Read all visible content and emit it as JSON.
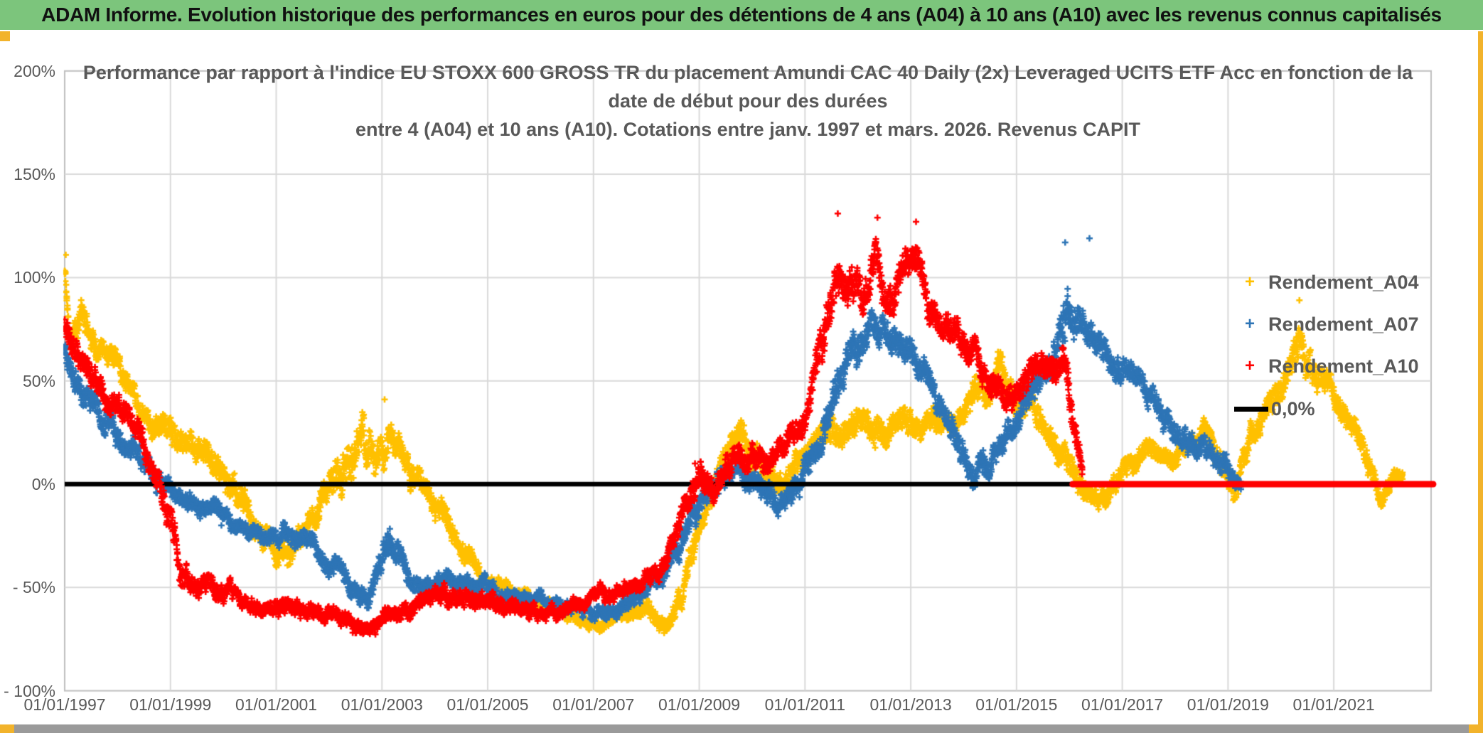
{
  "banner": {
    "title": "ADAM Informe. Evolution historique des performances en euros pour des détentions de 4 ans (A04) à 10 ans (A10) avec les revenus connus capitalisés",
    "bg_color": "#7CC57C",
    "accent_color": "#F2B32B"
  },
  "chart_data": {
    "type": "scatter",
    "title_lines": [
      "Performance par rapport à l'indice EU STOXX 600 GROSS TR  du placement Amundi CAC 40 Daily (2x) Leveraged UCITS ETF Acc en fonction de la",
      "date de début pour des durées",
      "entre 4 (A04) et 10 ans (A10). Cotations entre janv. 1997 et mars. 2026. Revenus CAPIT"
    ],
    "grid": true,
    "legend_position": "top-right",
    "x_range_years": [
      1997.0,
      2022.84
    ],
    "y_range_pct": [
      -100,
      200
    ],
    "y_ticks": {
      "labels": [
        "200%",
        "150%",
        "100%",
        "50%",
        "0%",
        "- 50%",
        "- 100%"
      ],
      "values": [
        200,
        150,
        100,
        50,
        0,
        -50,
        -100
      ]
    },
    "x_ticks": {
      "labels": [
        "01/01/1997",
        "01/01/1999",
        "01/01/2001",
        "01/01/2003",
        "01/01/2005",
        "01/01/2007",
        "01/01/2009",
        "01/01/2011",
        "01/01/2013",
        "01/01/2015",
        "01/01/2017",
        "01/01/2019",
        "01/01/2021"
      ],
      "years": [
        1997,
        1999,
        2001,
        2003,
        2005,
        2007,
        2009,
        2011,
        2013,
        2015,
        2017,
        2019,
        2021
      ]
    },
    "grid_color": "#D9D9D9",
    "border_color": "#BFBFBF",
    "text_color": "#595959",
    "zero_line": {
      "label": "0,0%",
      "value": 0,
      "color": "#000000",
      "from_year": 1997.0,
      "to_year": 2016.06
    },
    "series": [
      {
        "name": "Rendement_A04",
        "color": "#FFC000",
        "marker": "plus",
        "seed": 11,
        "anchors": [
          [
            1997.0,
            105,
            6
          ],
          [
            1997.1,
            72,
            10
          ],
          [
            1997.3,
            90,
            12
          ],
          [
            1997.5,
            70,
            8
          ],
          [
            1997.8,
            60,
            8
          ],
          [
            1998.0,
            56,
            8
          ],
          [
            1998.3,
            42,
            8
          ],
          [
            1998.6,
            32,
            8
          ],
          [
            1999.0,
            22,
            10
          ],
          [
            1999.3,
            12,
            10
          ],
          [
            1999.6,
            18,
            10
          ],
          [
            2000.0,
            2,
            10
          ],
          [
            2000.5,
            -14,
            9
          ],
          [
            2001.0,
            -33,
            8
          ],
          [
            2001.3,
            -28,
            9
          ],
          [
            2001.7,
            -17,
            8
          ],
          [
            2002.0,
            -5,
            10
          ],
          [
            2002.3,
            8,
            16
          ],
          [
            2002.6,
            22,
            16
          ],
          [
            2002.9,
            10,
            12
          ],
          [
            2003.15,
            27,
            11
          ],
          [
            2003.45,
            8,
            10
          ],
          [
            2003.8,
            -4,
            8
          ],
          [
            2004.1,
            -12,
            8
          ],
          [
            2004.5,
            -28,
            8
          ],
          [
            2004.9,
            -45,
            6
          ],
          [
            2005.4,
            -52,
            5
          ],
          [
            2005.9,
            -56,
            5
          ],
          [
            2006.3,
            -62,
            5
          ],
          [
            2006.7,
            -66,
            4
          ],
          [
            2007.2,
            -67,
            4
          ],
          [
            2007.7,
            -62,
            5
          ],
          [
            2008.0,
            -60,
            6
          ],
          [
            2008.35,
            -71,
            6
          ],
          [
            2008.7,
            -50,
            8
          ],
          [
            2009.0,
            -25,
            10
          ],
          [
            2009.2,
            -8,
            10
          ],
          [
            2009.5,
            10,
            12
          ],
          [
            2009.8,
            22,
            10
          ],
          [
            2010.1,
            12,
            10
          ],
          [
            2010.45,
            -2,
            10
          ],
          [
            2010.8,
            8,
            9
          ],
          [
            2011.2,
            18,
            9
          ],
          [
            2011.55,
            33,
            9
          ],
          [
            2011.9,
            26,
            10
          ],
          [
            2012.3,
            26,
            11
          ],
          [
            2012.7,
            30,
            9
          ],
          [
            2013.1,
            34,
            8
          ],
          [
            2013.5,
            31,
            8
          ],
          [
            2013.9,
            32,
            9
          ],
          [
            2014.3,
            42,
            9
          ],
          [
            2014.65,
            52,
            9
          ],
          [
            2015.0,
            44,
            9
          ],
          [
            2015.45,
            33,
            9
          ],
          [
            2015.8,
            18,
            9
          ],
          [
            2016.1,
            2,
            9
          ],
          [
            2016.45,
            -10,
            7
          ],
          [
            2016.8,
            -4,
            7
          ],
          [
            2017.1,
            10,
            7
          ],
          [
            2017.5,
            17,
            7
          ],
          [
            2017.9,
            14,
            7
          ],
          [
            2018.3,
            21,
            7
          ],
          [
            2018.6,
            28,
            7
          ],
          [
            2018.95,
            5,
            9
          ],
          [
            2019.15,
            -6,
            7
          ],
          [
            2019.45,
            22,
            9
          ],
          [
            2019.7,
            40,
            9
          ],
          [
            2020.0,
            42,
            9
          ],
          [
            2020.35,
            70,
            12
          ],
          [
            2020.6,
            52,
            9
          ],
          [
            2020.9,
            45,
            9
          ],
          [
            2021.15,
            38,
            8
          ],
          [
            2021.4,
            24,
            8
          ],
          [
            2021.7,
            2,
            8
          ],
          [
            2021.9,
            -8,
            6
          ],
          [
            2022.1,
            3,
            5
          ],
          [
            2022.3,
            2,
            4
          ]
        ],
        "outliers": [
          [
            1997.02,
            111
          ],
          [
            2020.35,
            89
          ],
          [
            2014.65,
            64
          ],
          [
            2003.05,
            41
          ]
        ]
      },
      {
        "name": "Rendement_A07",
        "color": "#2E75B6",
        "marker": "plus",
        "seed": 23,
        "anchors": [
          [
            1997.0,
            66,
            8
          ],
          [
            1997.3,
            49,
            9
          ],
          [
            1997.6,
            36,
            9
          ],
          [
            1997.9,
            29,
            8
          ],
          [
            1998.2,
            20,
            9
          ],
          [
            1998.5,
            11,
            8
          ],
          [
            1998.8,
            2,
            8
          ],
          [
            1999.1,
            -6,
            6
          ],
          [
            1999.5,
            -11,
            6
          ],
          [
            1999.9,
            -14,
            6
          ],
          [
            2000.2,
            -22,
            6
          ],
          [
            2000.6,
            -22,
            6
          ],
          [
            2001.0,
            -25,
            6
          ],
          [
            2001.4,
            -27,
            7
          ],
          [
            2001.8,
            -33,
            6
          ],
          [
            2002.1,
            -41,
            7
          ],
          [
            2002.5,
            -53,
            6
          ],
          [
            2002.8,
            -50,
            7
          ],
          [
            2003.15,
            -30,
            12
          ],
          [
            2003.5,
            -46,
            7
          ],
          [
            2003.9,
            -46,
            6
          ],
          [
            2004.3,
            -47,
            6
          ],
          [
            2004.8,
            -48,
            6
          ],
          [
            2005.3,
            -52,
            6
          ],
          [
            2005.8,
            -55,
            5
          ],
          [
            2006.3,
            -57,
            5
          ],
          [
            2006.8,
            -60,
            5
          ],
          [
            2007.3,
            -62,
            5
          ],
          [
            2007.8,
            -55,
            6
          ],
          [
            2008.2,
            -50,
            7
          ],
          [
            2008.6,
            -33,
            9
          ],
          [
            2008.9,
            -12,
            9
          ],
          [
            2009.2,
            -3,
            9
          ],
          [
            2009.5,
            5,
            8
          ],
          [
            2009.8,
            8,
            8
          ],
          [
            2010.1,
            4,
            8
          ],
          [
            2010.5,
            -8,
            8
          ],
          [
            2010.9,
            2,
            8
          ],
          [
            2011.3,
            22,
            10
          ],
          [
            2011.65,
            50,
            12
          ],
          [
            2012.0,
            68,
            11
          ],
          [
            2012.3,
            82,
            10
          ],
          [
            2012.6,
            68,
            10
          ],
          [
            2013.0,
            62,
            9
          ],
          [
            2013.4,
            45,
            9
          ],
          [
            2013.8,
            25,
            9
          ],
          [
            2014.15,
            8,
            9
          ],
          [
            2014.5,
            14,
            9
          ],
          [
            2014.9,
            28,
            9
          ],
          [
            2015.3,
            45,
            9
          ],
          [
            2015.65,
            62,
            10
          ],
          [
            2015.9,
            82,
            16
          ],
          [
            2016.2,
            82,
            11
          ],
          [
            2016.5,
            70,
            10
          ],
          [
            2016.9,
            58,
            9
          ],
          [
            2017.2,
            52,
            8
          ],
          [
            2017.6,
            40,
            8
          ],
          [
            2017.95,
            25,
            8
          ],
          [
            2018.3,
            18,
            8
          ],
          [
            2018.7,
            14,
            8
          ],
          [
            2019.0,
            10,
            8
          ],
          [
            2019.25,
            -2,
            4
          ]
        ],
        "outliers": [
          [
            2015.92,
            117
          ],
          [
            2016.38,
            119
          ]
        ]
      },
      {
        "name": "Rendement_A10",
        "color": "#FF0000",
        "marker": "plus",
        "seed": 37,
        "anchors": [
          [
            1997.0,
            80,
            9
          ],
          [
            1997.3,
            66,
            9
          ],
          [
            1997.6,
            47,
            9
          ],
          [
            1997.9,
            38,
            8
          ],
          [
            1998.2,
            32,
            8
          ],
          [
            1998.5,
            18,
            8
          ],
          [
            1998.8,
            6,
            8
          ],
          [
            1999.0,
            -10,
            12
          ],
          [
            1999.15,
            -40,
            10
          ],
          [
            1999.4,
            -47,
            7
          ],
          [
            1999.8,
            -50,
            7
          ],
          [
            2000.2,
            -54,
            6
          ],
          [
            2000.6,
            -60,
            6
          ],
          [
            2001.0,
            -60,
            6
          ],
          [
            2001.4,
            -60,
            6
          ],
          [
            2001.8,
            -63,
            6
          ],
          [
            2002.2,
            -66,
            6
          ],
          [
            2002.6,
            -71,
            5
          ],
          [
            2002.9,
            -69,
            6
          ],
          [
            2003.3,
            -62,
            6
          ],
          [
            2003.7,
            -57,
            6
          ],
          [
            2004.1,
            -55,
            6
          ],
          [
            2004.5,
            -55,
            6
          ],
          [
            2004.9,
            -56,
            6
          ],
          [
            2005.4,
            -58,
            6
          ],
          [
            2005.9,
            -61,
            5
          ],
          [
            2006.3,
            -60,
            5
          ],
          [
            2006.7,
            -59,
            5
          ],
          [
            2007.1,
            -55,
            5
          ],
          [
            2007.5,
            -52,
            5
          ],
          [
            2008.0,
            -47,
            6
          ],
          [
            2008.4,
            -36,
            7
          ],
          [
            2008.7,
            -15,
            9
          ],
          [
            2009.0,
            5,
            10
          ],
          [
            2009.25,
            -5,
            9
          ],
          [
            2009.5,
            8,
            9
          ],
          [
            2009.8,
            12,
            8
          ],
          [
            2010.2,
            12,
            8
          ],
          [
            2010.6,
            18,
            8
          ],
          [
            2011.0,
            30,
            9
          ],
          [
            2011.35,
            68,
            16
          ],
          [
            2011.6,
            105,
            14
          ],
          [
            2011.85,
            95,
            13
          ],
          [
            2012.1,
            85,
            12
          ],
          [
            2012.35,
            110,
            12
          ],
          [
            2012.6,
            80,
            12
          ],
          [
            2012.9,
            100,
            12
          ],
          [
            2013.15,
            105,
            11
          ],
          [
            2013.5,
            75,
            11
          ],
          [
            2013.85,
            75,
            10
          ],
          [
            2014.2,
            62,
            9
          ],
          [
            2014.55,
            50,
            9
          ],
          [
            2014.9,
            42,
            9
          ],
          [
            2015.25,
            52,
            9
          ],
          [
            2015.6,
            58,
            10
          ],
          [
            2015.9,
            55,
            11
          ],
          [
            2016.1,
            25,
            12
          ],
          [
            2016.25,
            4,
            4
          ]
        ],
        "outliers": [
          [
            2011.62,
            131
          ],
          [
            2012.37,
            129
          ],
          [
            2013.1,
            127
          ],
          [
            2008.92,
            10
          ]
        ],
        "flat_zero_segment": {
          "value": 0,
          "from_year": 2016.06,
          "to_year": 2022.88
        }
      }
    ],
    "legend": [
      {
        "label": "Rendement_A04",
        "marker": "plus",
        "color": "#FFC000"
      },
      {
        "label": "Rendement_A07",
        "marker": "plus",
        "color": "#2E75B6"
      },
      {
        "label": "Rendement_A10",
        "marker": "plus",
        "color": "#FF0000"
      },
      {
        "label": "0,0%",
        "marker": "line",
        "color": "#000000"
      }
    ]
  }
}
